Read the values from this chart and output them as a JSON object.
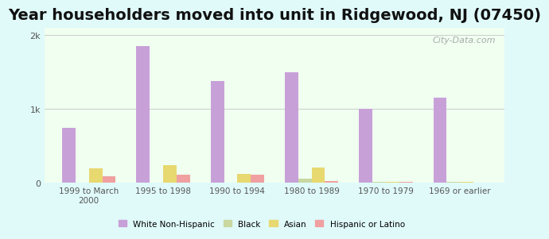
{
  "title": "Year householders moved into unit in Ridgewood, NJ (07450)",
  "categories": [
    "1999 to March\n2000",
    "1995 to 1998",
    "1990 to 1994",
    "1980 to 1989",
    "1970 to 1979",
    "1969 or earlier"
  ],
  "series": {
    "White Non-Hispanic": [
      750,
      1850,
      1380,
      1500,
      1000,
      1150
    ],
    "Black": [
      5,
      5,
      5,
      60,
      8,
      8
    ],
    "Asian": [
      200,
      240,
      120,
      210,
      10,
      10
    ],
    "Hispanic or Latino": [
      90,
      110,
      110,
      20,
      18,
      5
    ]
  },
  "colors": {
    "White Non-Hispanic": "#c8a0d8",
    "Black": "#c8d8a0",
    "Asian": "#e8d870",
    "Hispanic or Latino": "#f0a0a0"
  },
  "bar_width": 0.18,
  "ylim": [
    0,
    2100
  ],
  "yticks": [
    0,
    1000,
    2000
  ],
  "ytick_labels": [
    "0",
    "1k",
    "2k"
  ],
  "background_color": "#e0fafa",
  "plot_bg_start": "#f0fff0",
  "plot_bg_end": "#f8f8ff",
  "title_fontsize": 14,
  "watermark": "City-Data.com",
  "grid_color": "#cccccc"
}
